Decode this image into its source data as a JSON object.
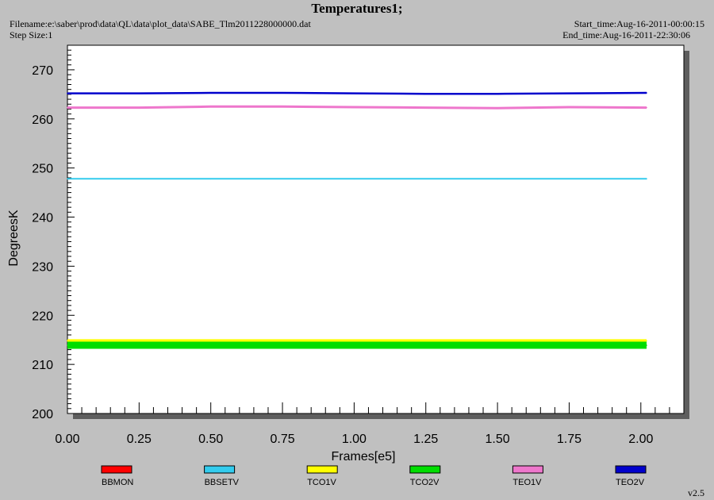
{
  "header": {
    "title": "Temperatures1;",
    "filename": "Filename:e:\\saber\\prod\\data\\QL\\data\\plot_data\\SABE_Tlm2011228000000.dat",
    "step_size": "Step Size:1",
    "start_time": "Start_time:Aug-16-2011-00:00:15",
    "end_time": "End_time:Aug-16-2011-22:30:06"
  },
  "footer": {
    "version": "v2.5"
  },
  "chart_data": {
    "type": "line",
    "title": "Temperatures1;",
    "xlabel": "Frames[e5]",
    "ylabel": "DegreesK",
    "xlim": [
      0,
      2.15
    ],
    "ylim": [
      200,
      275
    ],
    "xticks": [
      0,
      0.25,
      0.5,
      0.75,
      1.0,
      1.25,
      1.5,
      1.75,
      2.0
    ],
    "xtick_labels": [
      "0.00",
      "0.25",
      "0.50",
      "0.75",
      "1.00",
      "1.25",
      "1.50",
      "1.75",
      "2.00"
    ],
    "yticks": [
      200,
      210,
      220,
      230,
      240,
      250,
      260,
      270
    ],
    "ytick_labels": [
      "200",
      "210",
      "220",
      "230",
      "240",
      "250",
      "260",
      "270"
    ],
    "grid": false,
    "legend_position": "bottom",
    "series": [
      {
        "name": "BBMON",
        "color": "#ff0000",
        "x": [],
        "y": []
      },
      {
        "name": "BBSETV",
        "color": "#33ccee",
        "x": [
          0,
          0.5,
          1.0,
          1.5,
          2.02
        ],
        "y": [
          247.8,
          247.8,
          247.8,
          247.8,
          247.8
        ]
      },
      {
        "name": "TCO1V",
        "color": "#ffff00",
        "x": [
          0,
          0.5,
          1.0,
          1.5,
          2.02
        ],
        "y": [
          214.8,
          214.8,
          214.8,
          214.8,
          214.8
        ]
      },
      {
        "name": "TCO2V",
        "color": "#00dd00",
        "x": [
          0,
          0.5,
          1.0,
          1.5,
          2.02
        ],
        "y": [
          213.9,
          213.9,
          213.9,
          213.9,
          213.9
        ]
      },
      {
        "name": "TEO1V",
        "color": "#ee77cc",
        "x": [
          0,
          0.25,
          0.5,
          0.75,
          1.0,
          1.25,
          1.5,
          1.75,
          2.02
        ],
        "y": [
          262.3,
          262.3,
          262.5,
          262.5,
          262.4,
          262.3,
          262.2,
          262.4,
          262.3
        ]
      },
      {
        "name": "TEO2V",
        "color": "#0000cc",
        "x": [
          0,
          0.25,
          0.5,
          0.75,
          1.0,
          1.25,
          1.5,
          1.75,
          2.02
        ],
        "y": [
          265.2,
          265.2,
          265.3,
          265.3,
          265.2,
          265.1,
          265.1,
          265.2,
          265.3
        ]
      }
    ]
  }
}
